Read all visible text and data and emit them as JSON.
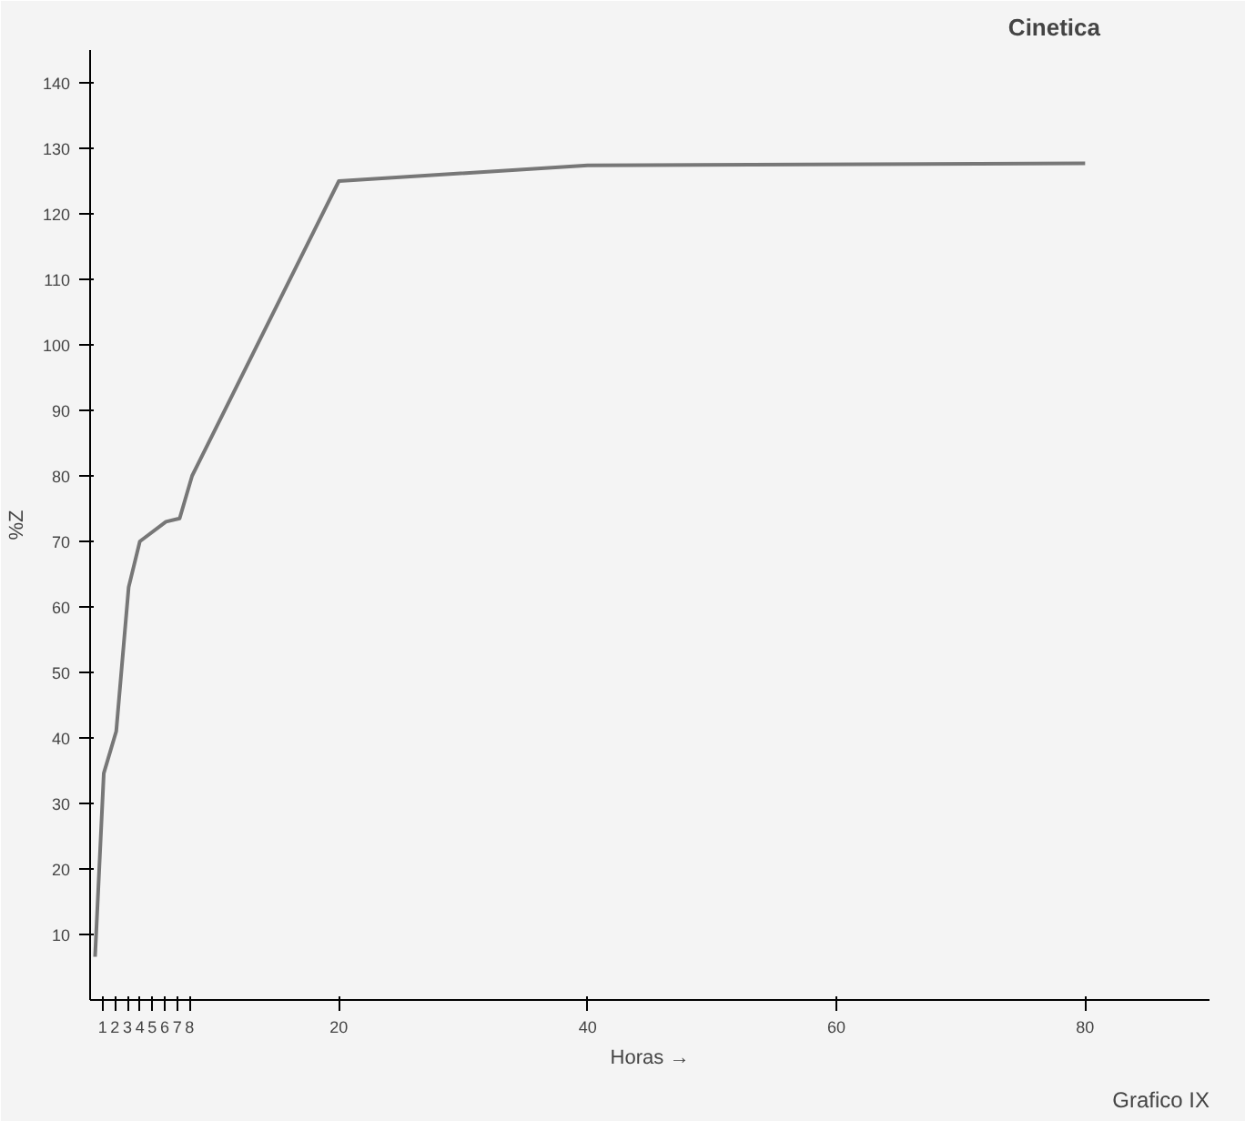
{
  "chart_data": {
    "type": "line",
    "title": "Cinetica",
    "xlabel": "Horas →",
    "ylabel": "%Z",
    "x": [
      0.4,
      1.1,
      2.1,
      3.1,
      4,
      6.1,
      7.2,
      8.2,
      20,
      40,
      80
    ],
    "series": [
      {
        "color": "#777777",
        "values": [
          6.6,
          34.6,
          41,
          63,
          70,
          73,
          73.5,
          80,
          125,
          127.4,
          127.7
        ]
      }
    ],
    "xlim": [
      0,
      90
    ],
    "xticks": [
      1,
      2,
      3,
      4,
      5,
      6,
      7,
      8,
      20,
      40,
      60,
      80
    ],
    "ylim": [
      0,
      145
    ],
    "yticks": [
      10,
      20,
      30,
      40,
      50,
      60,
      70,
      80,
      90,
      100,
      110,
      120,
      130,
      140
    ],
    "grid": false,
    "marker": "none",
    "line_style": "solid",
    "annotations": [
      "Grafico IX"
    ]
  }
}
